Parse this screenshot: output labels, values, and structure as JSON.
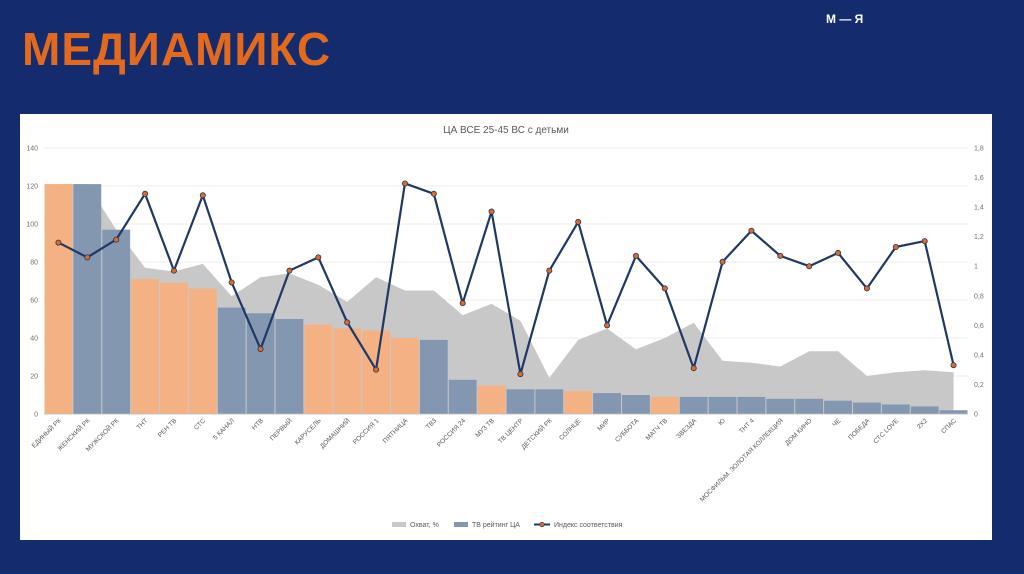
{
  "slide": {
    "title": "МЕДИАМИКС",
    "logo": "М — Я"
  },
  "colors": {
    "background": "#142c6e",
    "title": "#e36a1c",
    "bar_orange": "#f4b183",
    "bar_blue": "#8497b0",
    "area_gray": "#c8c8c8",
    "line": "#1f3864",
    "marker": "#e36a1c"
  },
  "chart_data": {
    "type": "bar",
    "title": "ЦА ВСЕ 25-45 ВС с детьми",
    "categories": [
      "ЕДИНЫЙ РК",
      "ЖЕНСКИЙ РК",
      "МУЖСКОЙ РК",
      "ТНТ",
      "РЕН ТВ",
      "СТС",
      "5 КАНАЛ",
      "НТВ",
      "ПЕРВЫЙ",
      "КАРУСЕЛЬ",
      "ДОМАШНИЙ",
      "РОССИЯ 1",
      "ПЯТНИЦА",
      "ТВ3",
      "РОССИЯ 24",
      "МУЗ ТВ",
      "ТВ ЦЕНТР",
      "ДЕТСКИЙ РК",
      "СОЛНЦЕ",
      "МИР",
      "СУББОТА",
      "МАТЧ ТВ",
      "ЗВЕЗДА",
      "Ю",
      "ТНТ 4",
      "МОСФИЛЬМ. ЗОЛОТАЯ КОЛЛЕКЦИЯ",
      "ДОМ КИНО",
      "ЧЕ",
      "ПОБЕДА",
      "СТС LOVE",
      "2Х2",
      "СПАС"
    ],
    "bar_colors": [
      "orange",
      "blue",
      "blue",
      "orange",
      "orange",
      "orange",
      "blue",
      "blue",
      "blue",
      "orange",
      "orange",
      "orange",
      "orange",
      "blue",
      "blue",
      "orange",
      "blue",
      "blue",
      "orange",
      "blue",
      "blue",
      "orange",
      "blue",
      "blue",
      "blue",
      "blue",
      "blue",
      "blue",
      "blue",
      "blue",
      "blue",
      "blue"
    ],
    "left_axis": {
      "min": 0,
      "max": 140,
      "ticks": [
        0,
        20,
        40,
        60,
        80,
        100,
        120,
        140
      ]
    },
    "right_axis": {
      "min": 0,
      "max": 1.8,
      "ticks": [
        "0",
        "0,2",
        "0,4",
        "0,6",
        "0,8",
        "1",
        "1,2",
        "1,4",
        "1,6",
        "1,8"
      ]
    },
    "series": [
      {
        "name": "Охват, %",
        "kind": "area",
        "axis": "left",
        "values": [
          121,
          121,
          97,
          77,
          75,
          79,
          62,
          72,
          74,
          68,
          59,
          72,
          65,
          65,
          52,
          58,
          49,
          19,
          39,
          45,
          34,
          40,
          48,
          28,
          27,
          25,
          33,
          33,
          20,
          22,
          23,
          22
        ]
      },
      {
        "name": "ТВ рейтинг ЦА",
        "kind": "bar",
        "axis": "left",
        "values": [
          121,
          121,
          97,
          71,
          69,
          66,
          56,
          53,
          50,
          47,
          45,
          44,
          40,
          39,
          18,
          15,
          13,
          13,
          12,
          11,
          10,
          9,
          9,
          9,
          9,
          8,
          8,
          7,
          6,
          5,
          4,
          2
        ]
      },
      {
        "name": "Индекс соответствия",
        "kind": "line",
        "axis": "right",
        "values": [
          1.16,
          1.06,
          1.18,
          1.49,
          0.97,
          1.48,
          0.89,
          0.44,
          0.97,
          1.06,
          0.62,
          0.3,
          1.56,
          1.49,
          0.75,
          1.37,
          0.27,
          0.97,
          1.3,
          0.6,
          1.07,
          0.85,
          0.31,
          1.03,
          1.24,
          1.07,
          1.0,
          1.09,
          0.85,
          1.13,
          1.17,
          0.33
        ]
      }
    ],
    "legend": {
      "position": "bottom"
    }
  }
}
